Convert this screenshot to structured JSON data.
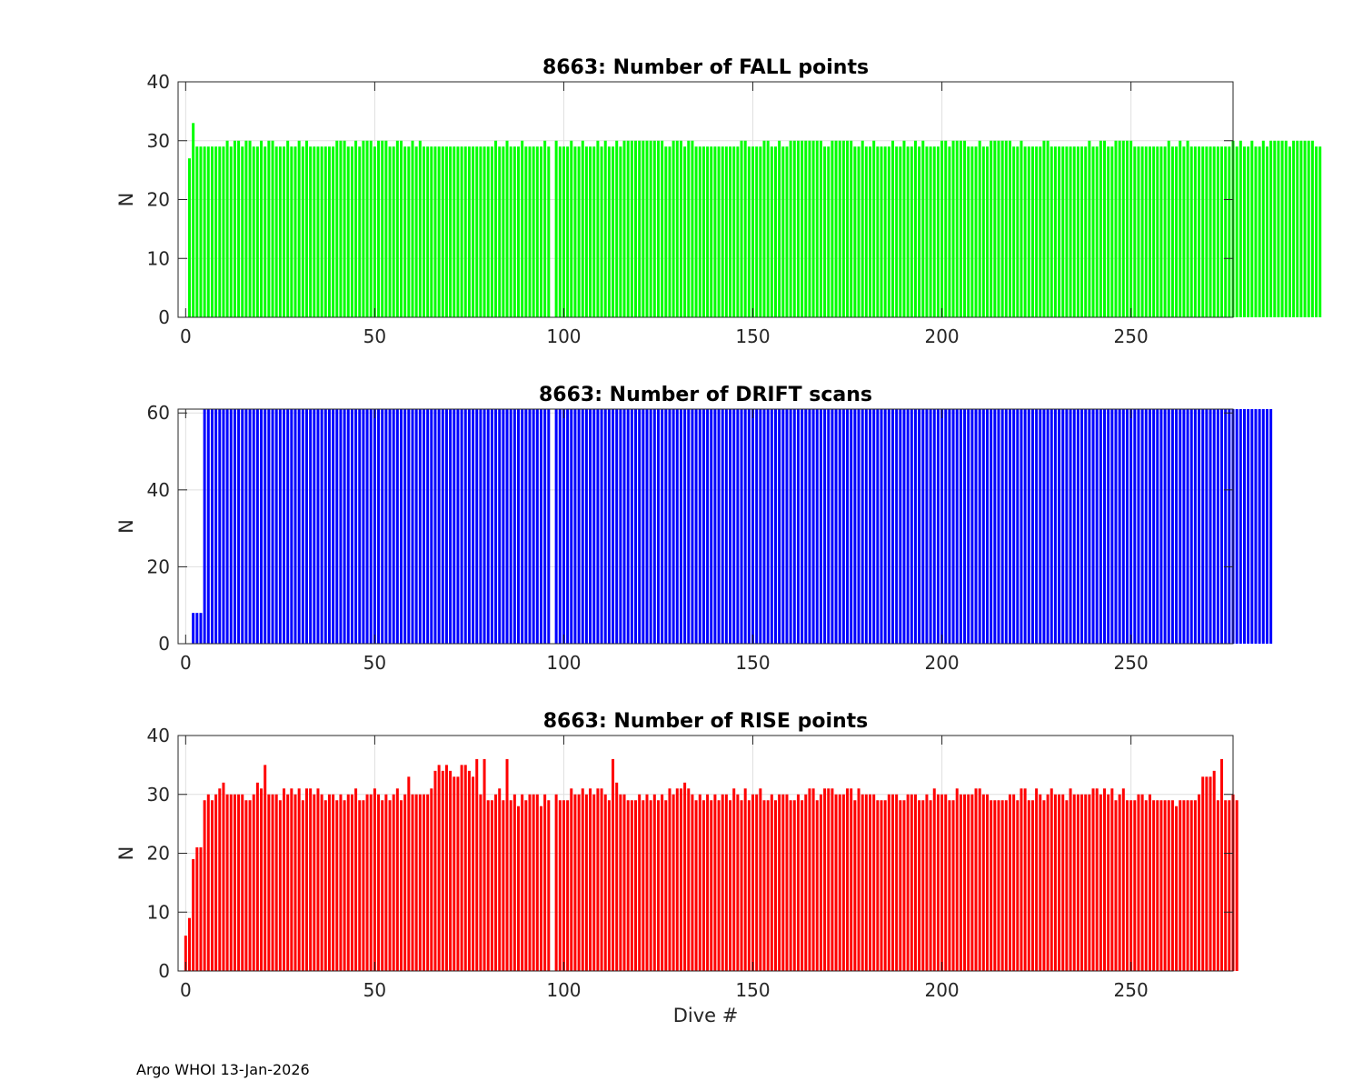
{
  "footer_text": "Argo WHOI 13-Jan-2026",
  "chart_data": [
    {
      "type": "bar",
      "title": "8663: Number of FALL points",
      "xlabel": "",
      "ylabel": "N",
      "xlim": [
        -2,
        277
      ],
      "ylim": [
        0,
        40
      ],
      "xticks": [
        0,
        50,
        100,
        150,
        200,
        250
      ],
      "yticks": [
        0,
        10,
        20,
        30,
        40
      ],
      "grid": true,
      "color": "#00ff00",
      "x_start": 1,
      "values": [
        27,
        33,
        29,
        29,
        29,
        29,
        29,
        29,
        29,
        29,
        30,
        29,
        30,
        30,
        29,
        30,
        30,
        29,
        29,
        30,
        29,
        30,
        30,
        29,
        29,
        29,
        30,
        29,
        29,
        30,
        29,
        30,
        29,
        29,
        29,
        29,
        29,
        29,
        29,
        30,
        30,
        30,
        29,
        29,
        30,
        29,
        30,
        30,
        30,
        29,
        30,
        30,
        30,
        29,
        29,
        30,
        30,
        29,
        29,
        30,
        29,
        30,
        29,
        29,
        29,
        29,
        29,
        29,
        29,
        29,
        29,
        29,
        29,
        29,
        29,
        29,
        29,
        29,
        29,
        29,
        29,
        30,
        29,
        29,
        30,
        29,
        29,
        29,
        30,
        29,
        29,
        29,
        29,
        29,
        30,
        29,
        29,
        30,
        29,
        29,
        29,
        30,
        29,
        29,
        30,
        29,
        29,
        29,
        30,
        29,
        30,
        29,
        29,
        30,
        29,
        30,
        30,
        30,
        30,
        30,
        30,
        30,
        30,
        30,
        30,
        30,
        29,
        29,
        30,
        30,
        30,
        29,
        30,
        30,
        29,
        29,
        29,
        29,
        29,
        29,
        29,
        29,
        29,
        29,
        29,
        29,
        30,
        30,
        29,
        29,
        29,
        29,
        30,
        30,
        29,
        29,
        30,
        29,
        29,
        30,
        30,
        30,
        30,
        30,
        30,
        30,
        30,
        30,
        29,
        29,
        30,
        30,
        30,
        30,
        30,
        30,
        29,
        29,
        30,
        29,
        29,
        30,
        29,
        29,
        29,
        29,
        30,
        29,
        29,
        30,
        29,
        29,
        30,
        29,
        30,
        29,
        29,
        29,
        29,
        30,
        30,
        29,
        30,
        30,
        30,
        30,
        29,
        29,
        29,
        30,
        29,
        29,
        30,
        30,
        30,
        30,
        30,
        30,
        29,
        29,
        30,
        29,
        29,
        29,
        29,
        29,
        30,
        30,
        29,
        29,
        29,
        29,
        29,
        29,
        29,
        29,
        29,
        29,
        30,
        29,
        29,
        30,
        30,
        29,
        29,
        30,
        30,
        30,
        30,
        30,
        29,
        29,
        29,
        29,
        29,
        29,
        29,
        29,
        29,
        30,
        29,
        29,
        30,
        29,
        30,
        29,
        29,
        29,
        29,
        29,
        29,
        29,
        29,
        29,
        29,
        29,
        30,
        29,
        30,
        29,
        29,
        30,
        29,
        29,
        30,
        29,
        30,
        30,
        30,
        30,
        30,
        29,
        30,
        30,
        30,
        30,
        30,
        30,
        29,
        29
      ],
      "gap_at": [
        97
      ]
    },
    {
      "type": "bar",
      "title": "8663: Number of DRIFT scans",
      "xlabel": "",
      "ylabel": "N",
      "xlim": [
        -2,
        277
      ],
      "ylim": [
        0,
        61
      ],
      "xticks": [
        0,
        50,
        100,
        150,
        200,
        250
      ],
      "yticks": [
        0,
        20,
        40,
        60
      ],
      "grid": true,
      "color": "#0000ff",
      "x_start": 2,
      "values_note": "dives 2-4 = 8, all later dives = 61 (clipped at top)",
      "values": [
        8,
        8,
        8,
        61,
        61,
        61,
        61,
        61,
        61,
        61,
        61,
        61,
        61,
        61,
        61,
        61,
        61,
        61,
        61,
        61,
        61,
        61,
        61,
        61,
        61,
        61,
        61,
        61,
        61,
        61,
        61,
        61,
        61,
        61,
        61,
        61,
        61,
        61,
        61,
        61,
        61,
        61,
        61,
        61,
        61,
        61,
        61,
        61,
        61,
        61,
        61,
        61,
        61,
        61,
        61,
        61,
        61,
        61,
        61,
        61,
        61,
        61,
        61,
        61,
        61,
        61,
        61,
        61,
        61,
        61,
        61,
        61,
        61,
        61,
        61,
        61,
        61,
        61,
        61,
        61,
        61,
        61,
        61,
        61,
        61,
        61,
        61,
        61,
        61,
        61,
        61,
        61,
        61,
        61,
        61,
        61,
        61,
        61,
        61,
        61,
        61,
        61,
        61,
        61,
        61,
        61,
        61,
        61,
        61,
        61,
        61,
        61,
        61,
        61,
        61,
        61,
        61,
        61,
        61,
        61,
        61,
        61,
        61,
        61,
        61,
        61,
        61,
        61,
        61,
        61,
        61,
        61,
        61,
        61,
        61,
        61,
        61,
        61,
        61,
        61,
        61,
        61,
        61,
        61,
        61,
        61,
        61,
        61,
        61,
        61,
        61,
        61,
        61,
        61,
        61,
        61,
        61,
        61,
        61,
        61,
        61,
        61,
        61,
        61,
        61,
        61,
        61,
        61,
        61,
        61,
        61,
        61,
        61,
        61,
        61,
        61,
        61,
        61,
        61,
        61,
        61,
        61,
        61,
        61,
        61,
        61,
        61,
        61,
        61,
        61,
        61,
        61,
        61,
        61,
        61,
        61,
        61,
        61,
        61,
        61,
        61,
        61,
        61,
        61,
        61,
        61,
        61,
        61,
        61,
        61,
        61,
        61,
        61,
        61,
        61,
        61,
        61,
        61,
        61,
        61,
        61,
        61,
        61,
        61,
        61,
        61,
        61,
        61,
        61,
        61,
        61,
        61,
        61,
        61,
        61,
        61,
        61,
        61,
        61,
        61,
        61,
        61,
        61,
        61,
        61,
        61,
        61,
        61,
        61,
        61,
        61,
        61,
        61,
        61,
        61,
        61,
        61,
        61,
        61,
        61,
        61,
        61,
        61,
        61,
        61,
        61,
        61,
        61,
        61,
        61,
        61,
        61,
        61,
        61,
        61,
        61,
        61,
        61,
        61,
        61,
        61,
        61,
        61,
        61,
        61,
        61
      ],
      "gap_at": [
        97
      ]
    },
    {
      "type": "bar",
      "title": "8663: Number of RISE points",
      "xlabel": "Dive #",
      "ylabel": "N",
      "xlim": [
        -2,
        277
      ],
      "ylim": [
        0,
        40
      ],
      "xticks": [
        0,
        50,
        100,
        150,
        200,
        250
      ],
      "yticks": [
        0,
        10,
        20,
        30,
        40
      ],
      "grid": true,
      "color": "#ff0000",
      "x_start": 0,
      "values": [
        6,
        9,
        19,
        21,
        21,
        29,
        30,
        29,
        30,
        31,
        32,
        30,
        30,
        30,
        30,
        30,
        29,
        29,
        30,
        32,
        31,
        35,
        30,
        30,
        30,
        29,
        31,
        30,
        31,
        30,
        31,
        29,
        31,
        31,
        30,
        31,
        30,
        29,
        30,
        30,
        29,
        30,
        29,
        30,
        30,
        31,
        29,
        29,
        30,
        30,
        31,
        30,
        29,
        30,
        29,
        30,
        31,
        29,
        30,
        33,
        30,
        30,
        30,
        30,
        30,
        31,
        34,
        35,
        34,
        35,
        34,
        33,
        33,
        35,
        35,
        34,
        33,
        36,
        30,
        36,
        29,
        29,
        30,
        31,
        29,
        36,
        29,
        30,
        28,
        30,
        29,
        30,
        30,
        30,
        28,
        30,
        29,
        30,
        30,
        29,
        29,
        29,
        31,
        30,
        30,
        31,
        30,
        31,
        30,
        31,
        31,
        30,
        29,
        36,
        32,
        30,
        30,
        29,
        29,
        29,
        30,
        29,
        30,
        29,
        30,
        29,
        30,
        29,
        31,
        30,
        31,
        31,
        32,
        31,
        30,
        29,
        30,
        29,
        30,
        29,
        30,
        29,
        30,
        30,
        29,
        31,
        30,
        29,
        31,
        29,
        30,
        30,
        31,
        29,
        29,
        30,
        29,
        30,
        30,
        30,
        29,
        29,
        30,
        29,
        30,
        31,
        31,
        29,
        30,
        31,
        31,
        31,
        30,
        30,
        30,
        31,
        31,
        29,
        31,
        30,
        30,
        30,
        30,
        29,
        29,
        29,
        30,
        30,
        30,
        29,
        29,
        30,
        30,
        30,
        29,
        29,
        30,
        29,
        31,
        30,
        30,
        30,
        29,
        29,
        31,
        30,
        30,
        30,
        30,
        31,
        31,
        30,
        30,
        29,
        29,
        29,
        29,
        29,
        30,
        30,
        29,
        31,
        31,
        29,
        29,
        31,
        30,
        29,
        30,
        31,
        30,
        30,
        30,
        29,
        31,
        30,
        30,
        30,
        30,
        30,
        31,
        31,
        30,
        31,
        30,
        31,
        29,
        30,
        31,
        29,
        29,
        29,
        30,
        30,
        29,
        30,
        29,
        29,
        29,
        29,
        29,
        29,
        28,
        29,
        29,
        29,
        29,
        29,
        30,
        33,
        33,
        33,
        34,
        29,
        36,
        29,
        29,
        30,
        29
      ],
      "gap_at": [
        97
      ]
    }
  ]
}
